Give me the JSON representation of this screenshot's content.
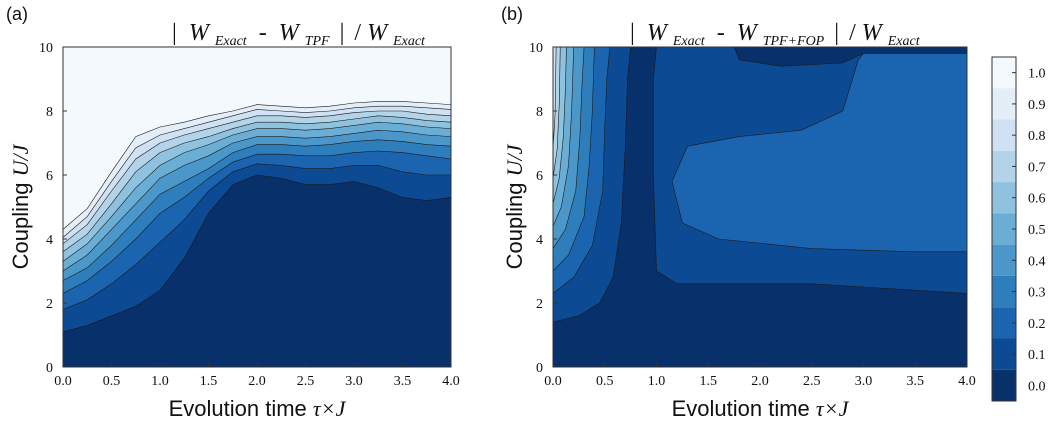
{
  "chart_data": [
    {
      "panel_label": "(a)",
      "type": "contourf",
      "title": {
        "W_left": "W",
        "sub_left": "Exact",
        "minus": "-",
        "W_right": "W",
        "sub_right": "TPF",
        "slash": "/",
        "W_den": "W",
        "sub_den": "Exact"
      },
      "xlabel": {
        "text": "Evolution time ",
        "math": "τ×J"
      },
      "ylabel": {
        "text": "Coupling ",
        "math": "U/J"
      },
      "xlim": [
        0,
        4
      ],
      "ylim": [
        0,
        10
      ],
      "xticks": [
        "0.0",
        "0.5",
        "1.0",
        "1.5",
        "2.0",
        "2.5",
        "3.0",
        "3.5",
        "4.0"
      ],
      "yticks": [
        "0",
        "2",
        "4",
        "6",
        "8",
        "10"
      ],
      "x": [
        0,
        0.25,
        0.5,
        0.75,
        1.0,
        1.25,
        1.5,
        1.75,
        2.0,
        2.25,
        2.5,
        2.75,
        3.0,
        3.25,
        3.5,
        3.75,
        4.0
      ],
      "contour_lines": [
        {
          "level": 0.1,
          "y": [
            1.1,
            1.3,
            1.6,
            1.9,
            2.4,
            3.4,
            4.8,
            5.7,
            6.0,
            5.9,
            5.7,
            5.7,
            5.8,
            5.6,
            5.3,
            5.2,
            5.3
          ]
        },
        {
          "level": 0.2,
          "y": [
            1.8,
            2.1,
            2.6,
            3.2,
            3.9,
            4.6,
            5.5,
            6.1,
            6.35,
            6.3,
            6.2,
            6.2,
            6.3,
            6.3,
            6.1,
            6.0,
            6.0
          ]
        },
        {
          "level": 0.3,
          "y": [
            2.3,
            2.7,
            3.3,
            4.0,
            4.8,
            5.3,
            5.9,
            6.4,
            6.65,
            6.65,
            6.6,
            6.6,
            6.7,
            6.75,
            6.7,
            6.6,
            6.5
          ]
        },
        {
          "level": 0.4,
          "y": [
            2.7,
            3.1,
            3.8,
            4.6,
            5.4,
            5.8,
            6.2,
            6.7,
            6.95,
            6.95,
            6.9,
            6.95,
            7.05,
            7.1,
            7.05,
            6.95,
            6.9
          ]
        },
        {
          "level": 0.5,
          "y": [
            3.0,
            3.5,
            4.3,
            5.1,
            5.9,
            6.3,
            6.6,
            7.0,
            7.2,
            7.2,
            7.15,
            7.2,
            7.3,
            7.4,
            7.35,
            7.25,
            7.2
          ]
        },
        {
          "level": 0.6,
          "y": [
            3.3,
            3.85,
            4.7,
            5.6,
            6.3,
            6.7,
            6.95,
            7.25,
            7.45,
            7.45,
            7.4,
            7.45,
            7.55,
            7.65,
            7.6,
            7.5,
            7.45
          ]
        },
        {
          "level": 0.7,
          "y": [
            3.6,
            4.15,
            5.1,
            6.1,
            6.7,
            7.0,
            7.2,
            7.45,
            7.65,
            7.65,
            7.6,
            7.65,
            7.75,
            7.85,
            7.8,
            7.7,
            7.65
          ]
        },
        {
          "level": 0.8,
          "y": [
            3.85,
            4.45,
            5.5,
            6.5,
            7.0,
            7.25,
            7.45,
            7.65,
            7.85,
            7.85,
            7.8,
            7.85,
            7.95,
            8.0,
            8.0,
            7.9,
            7.85
          ]
        },
        {
          "level": 0.9,
          "y": [
            4.05,
            4.7,
            5.8,
            6.85,
            7.25,
            7.45,
            7.65,
            7.85,
            8.05,
            8.0,
            7.95,
            8.0,
            8.1,
            8.15,
            8.15,
            8.1,
            8.05
          ]
        },
        {
          "level": 1.0,
          "y": [
            4.3,
            4.95,
            6.1,
            7.2,
            7.5,
            7.65,
            7.85,
            8.0,
            8.2,
            8.15,
            8.1,
            8.15,
            8.25,
            8.3,
            8.3,
            8.25,
            8.2
          ]
        }
      ]
    },
    {
      "panel_label": "(b)",
      "type": "contourf",
      "title": {
        "W_left": "W",
        "sub_left": "Exact",
        "minus": "-",
        "W_right": "W",
        "sub_right": "TPF+FOP",
        "slash": "/",
        "W_den": "W",
        "sub_den": "Exact"
      },
      "xlabel": {
        "text": "Evolution time ",
        "math": "τ×J"
      },
      "ylabel": {
        "text": "Coupling ",
        "math": "U/J"
      },
      "xlim": [
        0,
        4
      ],
      "ylim": [
        0,
        10
      ],
      "xticks": [
        "0.0",
        "0.5",
        "1.0",
        "1.5",
        "2.0",
        "2.5",
        "3.0",
        "3.5",
        "4.0"
      ],
      "yticks": [
        "0",
        "2",
        "4",
        "6",
        "8",
        "10"
      ],
      "regions": [
        {
          "level": 0.1,
          "polygon": [
            [
              0,
              1.4
            ],
            [
              0.25,
              1.6
            ],
            [
              0.45,
              2.0
            ],
            [
              0.58,
              2.8
            ],
            [
              0.66,
              4.5
            ],
            [
              0.7,
              7
            ],
            [
              0.72,
              9
            ],
            [
              0.75,
              10
            ],
            [
              0,
              10
            ]
          ]
        },
        {
          "level": 0.2,
          "polygon": [
            [
              0,
              2.3
            ],
            [
              0.2,
              2.8
            ],
            [
              0.38,
              3.8
            ],
            [
              0.48,
              5.5
            ],
            [
              0.5,
              7.5
            ],
            [
              0.52,
              9.0
            ],
            [
              0.55,
              10
            ],
            [
              0,
              10
            ]
          ]
        },
        {
          "level": 0.3,
          "polygon": [
            [
              0,
              3.0
            ],
            [
              0.15,
              3.5
            ],
            [
              0.3,
              4.7
            ],
            [
              0.35,
              6.3
            ],
            [
              0.38,
              8.0
            ],
            [
              0.4,
              10
            ],
            [
              0,
              10
            ]
          ]
        },
        {
          "level": 0.4,
          "polygon": [
            [
              0,
              3.7
            ],
            [
              0.12,
              4.3
            ],
            [
              0.22,
              5.5
            ],
            [
              0.26,
              7.2
            ],
            [
              0.28,
              8.8
            ],
            [
              0.3,
              10
            ],
            [
              0,
              10
            ]
          ]
        },
        {
          "level": 0.5,
          "polygon": [
            [
              0,
              4.4
            ],
            [
              0.08,
              5.0
            ],
            [
              0.15,
              6.3
            ],
            [
              0.18,
              8.0
            ],
            [
              0.2,
              10
            ],
            [
              0,
              10
            ]
          ]
        },
        {
          "level": 0.6,
          "polygon": [
            [
              0,
              5.1
            ],
            [
              0.06,
              5.9
            ],
            [
              0.1,
              7.2
            ],
            [
              0.12,
              8.7
            ],
            [
              0.13,
              10
            ],
            [
              0,
              10
            ]
          ]
        },
        {
          "level": 0.7,
          "polygon": [
            [
              0,
              5.9
            ],
            [
              0.04,
              6.8
            ],
            [
              0.06,
              8.2
            ],
            [
              0.07,
              10
            ],
            [
              0,
              10
            ]
          ]
        },
        {
          "level": 0.8,
          "polygon": [
            [
              0,
              6.8
            ],
            [
              0.02,
              7.9
            ],
            [
              0.03,
              10
            ],
            [
              0,
              10
            ]
          ]
        },
        {
          "level": 0.1,
          "polygon": [
            [
              1.0,
              10
            ],
            [
              0.97,
              9.0
            ],
            [
              0.97,
              6.0
            ],
            [
              1.0,
              3.0
            ],
            [
              1.2,
              2.6
            ],
            [
              1.8,
              2.6
            ],
            [
              2.5,
              2.6
            ],
            [
              3.0,
              2.5
            ],
            [
              3.5,
              2.4
            ],
            [
              4.0,
              2.3
            ],
            [
              4.0,
              9.8
            ],
            [
              3.0,
              9.8
            ],
            [
              2.8,
              9.5
            ],
            [
              2.2,
              9.4
            ],
            [
              1.8,
              9.6
            ],
            [
              1.75,
              10
            ]
          ]
        },
        {
          "level": 0.2,
          "polygon": [
            [
              1.15,
              5.8
            ],
            [
              1.25,
              4.5
            ],
            [
              1.6,
              4.0
            ],
            [
              2.5,
              3.7
            ],
            [
              3.5,
              3.6
            ],
            [
              4.0,
              3.6
            ],
            [
              4.0,
              9.8
            ],
            [
              3.0,
              9.8
            ],
            [
              2.95,
              9.6
            ],
            [
              2.8,
              8.0
            ],
            [
              2.4,
              7.4
            ],
            [
              1.8,
              7.2
            ],
            [
              1.3,
              6.9
            ]
          ]
        }
      ]
    }
  ],
  "colorbar": {
    "levels": [
      "1.0",
      "0.9",
      "0.8",
      "0.7",
      "0.6",
      "0.5",
      "0.4",
      "0.3",
      "0.2",
      "0.1",
      "0.0"
    ],
    "colors": [
      "#08306b",
      "#0d4a94",
      "#1b64b0",
      "#2e7ebc",
      "#4b97c9",
      "#6aaed6",
      "#8fc2de",
      "#b2d3e8",
      "#cfe1f2",
      "#e3eef9",
      "#f4f9fe"
    ]
  }
}
